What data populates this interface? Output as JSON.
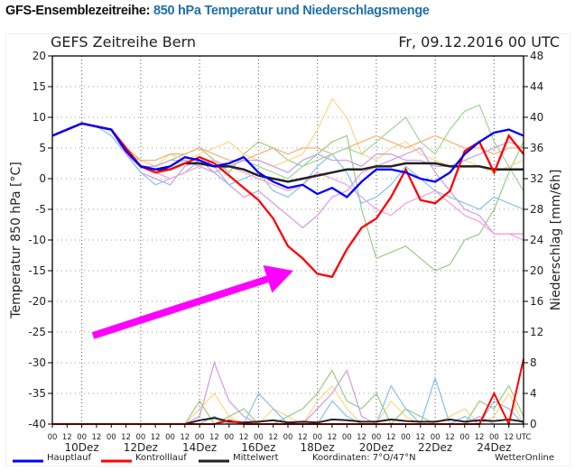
{
  "header": {
    "prefix": "GFS-Ensemblezeitreihe:",
    "title": "850 hPa Temperatur und Niederschlagsmenge"
  },
  "chart_data": {
    "type": "line",
    "title": "GEFS Zeitreihe Bern",
    "run_time": "Fr, 09.12.2016 00 UTC",
    "ylabel": "Temperatur 850 hPa [°C]",
    "ylabel_right": "Niederschlag [mm/6h]",
    "ylim": [
      -40,
      20
    ],
    "ylim_right": [
      0,
      48
    ],
    "y_ticks": [
      20,
      15,
      10,
      5,
      0,
      -5,
      -10,
      -15,
      -20,
      -25,
      -30,
      -35,
      -40
    ],
    "y_right_ticks": [
      48,
      44,
      40,
      36,
      32,
      28,
      24,
      20,
      16,
      12,
      8,
      4,
      0
    ],
    "x_hour_labels": [
      "00",
      "12",
      "00",
      "12",
      "00",
      "12",
      "00",
      "12",
      "00",
      "12",
      "00",
      "12",
      "00",
      "12",
      "00",
      "12",
      "00",
      "12",
      "00",
      "12",
      "00",
      "12",
      "00",
      "12",
      "00",
      "12",
      "00",
      "12",
      "00",
      "12",
      "00",
      "12",
      "UTC"
    ],
    "x_day_labels": [
      "10Dez",
      "12Dez",
      "14Dez",
      "16Dez",
      "18Dez",
      "20Dez",
      "22Dez",
      "24Dez"
    ],
    "x_step_hours": 12,
    "series": [
      {
        "name": "Hauptlauf",
        "color": "#0000ff",
        "values": [
          7,
          8,
          9,
          8.5,
          8,
          4.5,
          2,
          1.5,
          2,
          3.5,
          3,
          2,
          2.5,
          3.5,
          1,
          -0.5,
          -1.5,
          -1,
          -2.5,
          -1.5,
          -3,
          -0.5,
          1.5,
          1.5,
          1,
          0,
          -0.5,
          1,
          4,
          6,
          7.5,
          8,
          7
        ]
      },
      {
        "name": "Kontrolllauf",
        "color": "#ff0000",
        "values": [
          7,
          8,
          9,
          8.5,
          8,
          5,
          2,
          1,
          1.5,
          2.5,
          3.5,
          2.5,
          0.5,
          -1.5,
          -3.5,
          -6.5,
          -11,
          -13,
          -15.5,
          -16,
          -11.5,
          -8,
          -6.5,
          -3,
          1.5,
          -3.5,
          -4,
          -2,
          4.5,
          6,
          1,
          7,
          4
        ]
      },
      {
        "name": "Mittelwert",
        "color": "#222222",
        "values": [
          7,
          8,
          9,
          8.5,
          8,
          4.5,
          2,
          1.5,
          1.5,
          2.5,
          2.5,
          2,
          2,
          1.5,
          0.5,
          0,
          -0.5,
          0,
          0.5,
          1,
          1.5,
          1.5,
          2,
          2,
          2.5,
          2.5,
          2.5,
          2,
          2,
          2,
          1.5,
          1.5,
          1.5
        ]
      }
    ],
    "ensemble": [
      {
        "color": "#9fd08a",
        "values": [
          7,
          8,
          9,
          8.5,
          8,
          4,
          3,
          2,
          3,
          4,
          5,
          3,
          1,
          4,
          6,
          5,
          3,
          2,
          4,
          6,
          7,
          -5,
          -13,
          -12,
          -11,
          -13,
          -15,
          -14,
          -10,
          -9,
          -5,
          1,
          6
        ]
      },
      {
        "color": "#ffd98c",
        "values": [
          7,
          8,
          9,
          8.5,
          8,
          5,
          3,
          2,
          4,
          3,
          4,
          5,
          6,
          4,
          3,
          2,
          3,
          4,
          8,
          13,
          10,
          4,
          3,
          5,
          6,
          4,
          3,
          2,
          3,
          2,
          1,
          2,
          3
        ]
      },
      {
        "color": "#d7a0e6",
        "values": [
          7,
          8,
          9,
          8.5,
          8,
          4,
          1,
          0,
          -1,
          2,
          3,
          1,
          -1,
          -3,
          -2,
          -4,
          -6,
          -8,
          -6,
          -3,
          -2,
          1,
          2,
          3,
          4,
          5,
          1,
          -2,
          -5,
          -6,
          -9,
          -9,
          -9
        ]
      },
      {
        "color": "#8ec5ea",
        "values": [
          7,
          8,
          9,
          8.5,
          7,
          4,
          1,
          -1,
          0,
          1,
          3,
          2,
          -1,
          0,
          1,
          -2,
          -3,
          -1,
          2,
          4,
          1,
          -4,
          -3,
          -1,
          2,
          0,
          -2,
          -3,
          -4,
          -5,
          -3,
          -4,
          -5
        ]
      },
      {
        "color": "#f6b07a",
        "values": [
          7,
          8,
          9,
          8.5,
          8,
          5,
          3,
          3,
          4,
          4,
          5,
          4,
          3,
          3,
          4,
          5,
          4,
          5,
          5,
          4,
          5,
          6,
          7,
          6,
          5,
          6,
          7,
          6,
          5,
          5,
          4,
          5,
          5
        ]
      },
      {
        "color": "#a5d79a",
        "values": [
          7,
          8,
          9,
          8.5,
          8,
          5,
          2,
          1,
          2,
          3,
          2,
          1,
          2,
          3,
          2,
          1,
          0,
          2,
          3,
          4,
          5,
          4,
          6,
          8,
          10,
          6,
          4,
          8,
          11,
          12,
          6,
          2,
          -2
        ]
      },
      {
        "color": "#c4a6e4",
        "values": [
          7,
          8,
          9,
          8.5,
          8,
          4,
          2,
          2,
          3,
          3,
          2,
          1,
          2,
          3,
          3,
          2,
          1,
          3,
          4,
          3,
          3,
          2,
          4,
          4,
          3,
          3,
          2,
          2,
          3,
          4,
          5,
          6,
          5
        ]
      },
      {
        "color": "#f7a4d8",
        "values": [
          7,
          8,
          9,
          8.5,
          8,
          4,
          2,
          1,
          0,
          1,
          2,
          3,
          2,
          1,
          0,
          -1,
          -2,
          -1,
          1,
          0,
          -1,
          -3,
          -5,
          -6,
          -4,
          -3,
          -2,
          -4,
          -6,
          -7,
          -9,
          -9,
          -10
        ]
      }
    ],
    "precip_control": [
      0,
      0,
      0,
      0,
      0,
      0,
      0,
      0,
      0,
      0,
      0,
      0,
      0.5,
      0,
      0,
      0,
      0,
      0,
      0,
      0,
      0,
      0,
      0,
      0,
      0,
      0,
      0,
      0,
      0,
      0,
      4,
      0,
      8.5
    ],
    "precip_mean": [
      0,
      0,
      0,
      0,
      0,
      0,
      0,
      0,
      0,
      0,
      0.5,
      0.8,
      0.3,
      0.2,
      0.3,
      0.5,
      0.2,
      0.3,
      0.2,
      0.6,
      0.5,
      0.3,
      0.3,
      0.6,
      0.4,
      0.3,
      0.3,
      0.6,
      0.3,
      0.5,
      0.4,
      0.6,
      0.3
    ],
    "precip_ensemble": [
      {
        "color": "#ffd98c",
        "values": [
          0,
          0,
          0,
          0,
          0,
          0,
          0,
          0,
          0,
          0,
          2,
          4,
          1,
          0,
          0,
          2,
          1,
          0,
          3,
          5,
          2,
          0,
          0,
          3,
          1,
          0,
          0,
          1,
          2,
          0,
          1,
          4,
          0
        ]
      },
      {
        "color": "#d7a0e6",
        "values": [
          0,
          0,
          0,
          0,
          0,
          0,
          0,
          0,
          0,
          0,
          1,
          8,
          3,
          1,
          0,
          0,
          0,
          0,
          2,
          4,
          7,
          1,
          0,
          0,
          0,
          0,
          0,
          0,
          0,
          1,
          0,
          0,
          0
        ]
      },
      {
        "color": "#9fd08a",
        "values": [
          0,
          0,
          0,
          0,
          0,
          0,
          0,
          0,
          0,
          0,
          3,
          0,
          1,
          2,
          0,
          0,
          1,
          2,
          4,
          7,
          3,
          2,
          4,
          0,
          2,
          1,
          0,
          0,
          0,
          3,
          2,
          5,
          1
        ]
      },
      {
        "color": "#8ec5ea",
        "values": [
          0,
          0,
          0,
          0,
          0,
          0,
          0,
          0,
          0,
          0,
          0,
          1,
          0,
          0,
          4,
          2,
          0,
          0,
          0,
          3,
          1,
          0,
          0,
          5,
          2,
          0,
          6,
          0,
          1,
          0,
          3,
          2,
          0
        ]
      }
    ],
    "annotation_arrow": {
      "color": "#ff00ff",
      "from": [
        12,
        -28.5
      ],
      "to": [
        60,
        -17.5
      ]
    }
  },
  "legend": {
    "main": "Hauptlauf",
    "control": "Kontrolllauf",
    "mean": "Mittelwert",
    "coords": "Koordinaten: 7°O/47°N",
    "brand": "WetterOnline"
  }
}
